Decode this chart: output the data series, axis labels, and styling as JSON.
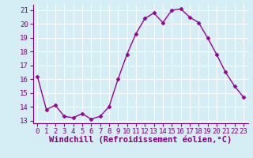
{
  "x": [
    0,
    1,
    2,
    3,
    4,
    5,
    6,
    7,
    8,
    9,
    10,
    11,
    12,
    13,
    14,
    15,
    16,
    17,
    18,
    19,
    20,
    21,
    22,
    23
  ],
  "y": [
    16.2,
    13.8,
    14.1,
    13.3,
    13.2,
    13.5,
    13.1,
    13.3,
    14.0,
    16.0,
    17.8,
    19.3,
    20.4,
    20.8,
    20.1,
    21.0,
    21.1,
    20.5,
    20.1,
    19.0,
    17.8,
    16.5,
    15.5,
    14.7
  ],
  "line_color": "#990099",
  "marker": "D",
  "marker_size": 2.5,
  "xlim_min": -0.5,
  "xlim_max": 23.5,
  "ylim_min": 12.8,
  "ylim_max": 21.4,
  "yticks": [
    13,
    14,
    15,
    16,
    17,
    18,
    19,
    20,
    21
  ],
  "xticks": [
    0,
    1,
    2,
    3,
    4,
    5,
    6,
    7,
    8,
    9,
    10,
    11,
    12,
    13,
    14,
    15,
    16,
    17,
    18,
    19,
    20,
    21,
    22,
    23
  ],
  "xlabel": "Windchill (Refroidissement éolien,°C)",
  "bg_color": "#d5eef5",
  "grid_color": "#ffffff",
  "spine_color": "#800080",
  "tick_color": "#800080",
  "tick_fontsize": 6.5,
  "label_fontsize": 7.5,
  "line_width": 1.0
}
